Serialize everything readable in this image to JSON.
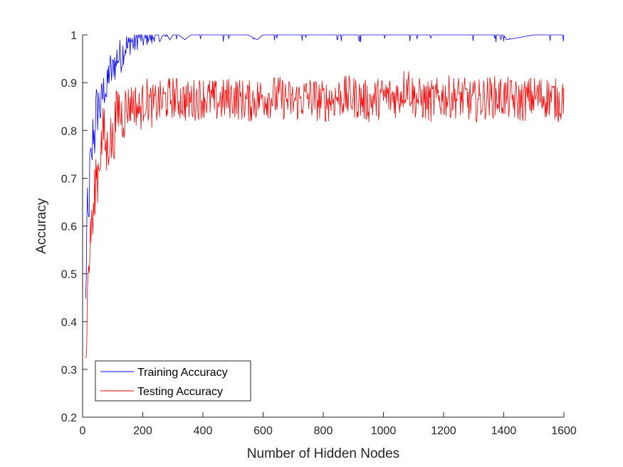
{
  "chart_data": {
    "type": "line",
    "title": "",
    "xlabel": "Number of Hidden Nodes",
    "ylabel": "Accuracy",
    "xlim": [
      0,
      1600
    ],
    "ylim": [
      0.2,
      1
    ],
    "xticks": [
      0,
      200,
      400,
      600,
      800,
      1000,
      1200,
      1400,
      1600
    ],
    "yticks": [
      0.2,
      0.3,
      0.4,
      0.5,
      0.6,
      0.7,
      0.8,
      0.9,
      1
    ],
    "xtick_labels": [
      "0",
      "200",
      "400",
      "600",
      "800",
      "1000",
      "1200",
      "1400",
      "1600"
    ],
    "ytick_labels": [
      "0.2",
      "0.3",
      "0.4",
      "0.5",
      "0.6",
      "0.7",
      "0.8",
      "0.9",
      "1"
    ],
    "grid": false,
    "legend_position": "bottom-left",
    "series": [
      {
        "name": "Training Accuracy",
        "color": "#0000ff",
        "x": [
          10,
          15,
          20,
          25,
          30,
          35,
          40,
          45,
          50,
          55,
          60,
          65,
          70,
          75,
          80,
          85,
          90,
          95,
          100,
          105,
          110,
          115,
          120,
          125,
          130,
          135,
          140,
          145,
          150,
          160,
          170,
          180,
          190,
          200,
          210,
          220,
          230,
          240,
          250,
          260,
          270,
          280,
          290,
          300,
          320,
          340,
          360,
          380,
          400,
          450,
          500,
          550,
          580,
          600,
          700,
          800,
          900,
          1000,
          1100,
          1200,
          1300,
          1400,
          1410,
          1500,
          1600
        ],
        "y": [
          0.43,
          0.63,
          0.6,
          0.74,
          0.72,
          0.81,
          0.78,
          0.85,
          0.84,
          0.86,
          0.84,
          0.87,
          0.88,
          0.9,
          0.87,
          0.91,
          0.93,
          0.92,
          0.92,
          0.95,
          0.93,
          0.96,
          0.95,
          0.96,
          0.95,
          0.97,
          0.97,
          0.98,
          0.97,
          0.99,
          0.98,
          0.99,
          1.0,
          0.99,
          0.99,
          1.0,
          0.99,
          1.0,
          1.0,
          0.99,
          1.0,
          1.0,
          0.99,
          1.0,
          1.0,
          0.99,
          1.0,
          1.0,
          1.0,
          1.0,
          1.0,
          1.0,
          0.99,
          1.0,
          1.0,
          1.0,
          1.0,
          1.0,
          1.0,
          1.0,
          1.0,
          1.0,
          0.99,
          1.0,
          1.0
        ]
      },
      {
        "name": "Testing Accuracy",
        "color": "#ff0000",
        "x": [
          10,
          15,
          20,
          25,
          30,
          35,
          40,
          45,
          50,
          55,
          60,
          65,
          70,
          80,
          90,
          100,
          110,
          120,
          130,
          150,
          170,
          190,
          210,
          230,
          260,
          300,
          350,
          400,
          450,
          500,
          550,
          600,
          650,
          700,
          750,
          800,
          850,
          900,
          950,
          1000,
          1050,
          1080,
          1100,
          1150,
          1200,
          1250,
          1300,
          1350,
          1400,
          1450,
          1500,
          1550,
          1590,
          1600
        ],
        "y": [
          0.3,
          0.42,
          0.52,
          0.55,
          0.62,
          0.6,
          0.66,
          0.72,
          0.7,
          0.74,
          0.76,
          0.78,
          0.8,
          0.75,
          0.79,
          0.77,
          0.82,
          0.85,
          0.83,
          0.85,
          0.86,
          0.84,
          0.87,
          0.85,
          0.86,
          0.87,
          0.86,
          0.87,
          0.86,
          0.87,
          0.86,
          0.87,
          0.87,
          0.86,
          0.87,
          0.86,
          0.87,
          0.87,
          0.86,
          0.87,
          0.87,
          0.9,
          0.87,
          0.86,
          0.87,
          0.87,
          0.86,
          0.87,
          0.87,
          0.86,
          0.87,
          0.87,
          0.86,
          0.88
        ]
      }
    ]
  }
}
